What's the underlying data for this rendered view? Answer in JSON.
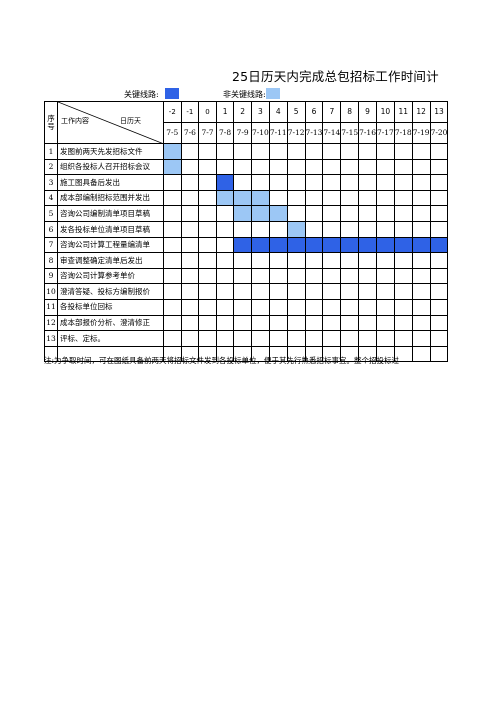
{
  "title": "25日历天内完成总包招标工作时间计",
  "legend": {
    "key_label": "关键线路:",
    "nonkey_label": "非关键线路:",
    "key_color": "#2f62e6",
    "nonkey_color": "#9cc7f5"
  },
  "header": {
    "seq_label": "序号",
    "work_label": "工作内容",
    "days_label": "日历天"
  },
  "days": [
    "-2",
    "-1",
    "0",
    "1",
    "2",
    "3",
    "4",
    "5",
    "6",
    "7",
    "8",
    "9",
    "10",
    "11",
    "12",
    "13"
  ],
  "dates": [
    "7-5",
    "7-6",
    "7-7",
    "7-8",
    "7-9",
    "7-10",
    "7-11",
    "7-12",
    "7-13",
    "7-14",
    "7-15",
    "7-16",
    "7-17",
    "7-18",
    "7-19",
    "7-20"
  ],
  "tasks": [
    {
      "no": "1",
      "name": "发图前两天先发招标文件",
      "bar": {
        "start": 0,
        "end": 0,
        "type": "nonkey"
      }
    },
    {
      "no": "2",
      "name": "组织各投标人召开招标会议",
      "bar": {
        "start": 0,
        "end": 0,
        "type": "nonkey"
      }
    },
    {
      "no": "3",
      "name": "施工图具备后发出",
      "bar": {
        "start": 3,
        "end": 3,
        "type": "key"
      }
    },
    {
      "no": "4",
      "name": "成本部编制招标范围并发出",
      "bar": {
        "start": 3,
        "end": 5,
        "type": "nonkey"
      }
    },
    {
      "no": "5",
      "name": "咨询公司编制清单项目草稿",
      "bar": {
        "start": 4,
        "end": 6,
        "type": "nonkey"
      }
    },
    {
      "no": "6",
      "name": "发各投标单位清单项目草稿",
      "bar": {
        "start": 7,
        "end": 7,
        "type": "nonkey"
      }
    },
    {
      "no": "7",
      "name": "咨询公司计算工程量编清单",
      "bar": {
        "start": 4,
        "end": 15,
        "type": "key"
      }
    },
    {
      "no": "8",
      "name": "审查调整确定清单后发出",
      "bar": null
    },
    {
      "no": "9",
      "name": "咨询公司计算参考单价",
      "bar": null
    },
    {
      "no": "10",
      "name": "澄清答疑、投标方编制报价",
      "bar": null
    },
    {
      "no": "11",
      "name": "各投标单位回标",
      "bar": null
    },
    {
      "no": "12",
      "name": "成本部报价分析、澄清修正",
      "bar": null
    },
    {
      "no": "13",
      "name": "评标、定标。",
      "bar": null
    },
    {
      "no": "",
      "name": "",
      "bar": null
    }
  ],
  "note": "注:为争取时间，可在图纸具备前两天将招标文件发到各投标单位，便于其先行熟悉招标事宜。整个招投标过"
}
